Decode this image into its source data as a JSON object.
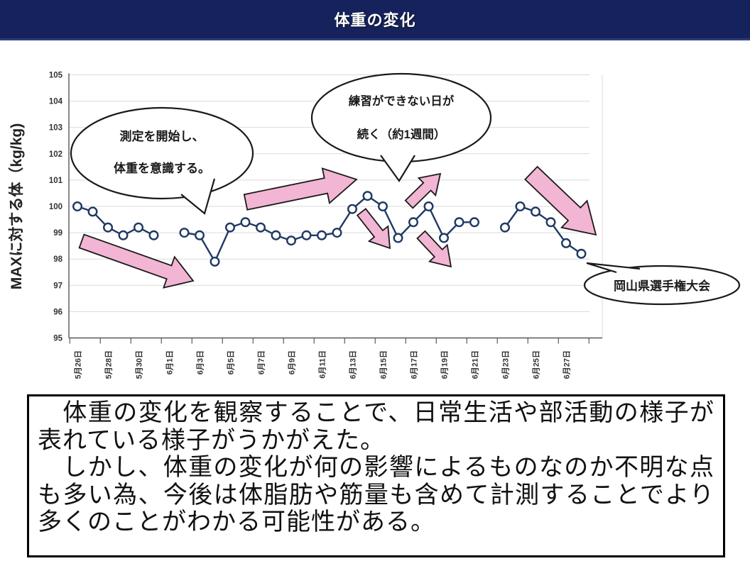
{
  "header": {
    "title": "体重の変化"
  },
  "colors": {
    "header_bg": "#16225B",
    "line": "#1F3864",
    "grid": "#D9D9D9",
    "axis": "#595959",
    "arrow_fill": "#F3B5D4",
    "arrow_stroke": "#1a1a1a"
  },
  "chart_data": {
    "type": "line",
    "title": "",
    "xlabel": "",
    "ylabel": "MAXに対する体（kg/kg)",
    "ylim": [
      95,
      105
    ],
    "yticks": [
      105,
      104,
      103,
      102,
      101,
      100,
      99,
      98,
      97,
      96,
      95
    ],
    "grid": true,
    "legend": "none",
    "marker": "open-circle",
    "x_tick_labels": [
      "5月26日",
      "5月28日",
      "5月30日",
      "6月1日",
      "6月3日",
      "6月5日",
      "6月7日",
      "6月9日",
      "6月11日",
      "6月13日",
      "6月15日",
      "6月17日",
      "6月19日",
      "6月21日",
      "6月23日",
      "6月25日",
      "6月27日"
    ],
    "x": [
      "5月26日",
      "5月27日",
      "5月28日",
      "5月29日",
      "5月30日",
      "5月31日",
      "6月1日",
      "6月2日",
      "6月3日",
      "6月4日",
      "6月5日",
      "6月6日",
      "6月7日",
      "6月8日",
      "6月9日",
      "6月10日",
      "6月11日",
      "6月12日",
      "6月13日",
      "6月14日",
      "6月15日",
      "6月16日",
      "6月17日",
      "6月18日",
      "6月19日",
      "6月20日",
      "6月21日",
      "6月22日",
      "6月23日",
      "6月24日",
      "6月25日",
      "6月26日",
      "6月27日",
      "6月28日"
    ],
    "values": [
      100.0,
      99.8,
      99.2,
      98.9,
      99.2,
      98.9,
      null,
      99.0,
      98.9,
      97.9,
      99.2,
      99.4,
      99.2,
      98.9,
      98.7,
      98.9,
      98.9,
      99.0,
      99.9,
      100.4,
      100.0,
      98.8,
      99.4,
      100.0,
      98.8,
      99.4,
      99.4,
      null,
      99.2,
      100.0,
      99.8,
      99.4,
      98.6,
      98.2
    ]
  },
  "annotations": {
    "bubbles": {
      "start": {
        "lines": [
          "測定を開始し、",
          "体重を意識する。"
        ]
      },
      "no_practice": {
        "lines": [
          "練習ができない日が",
          "続く（約1週間）"
        ]
      },
      "tournament": {
        "label": "岡山県選手権大会"
      }
    },
    "arrows": [
      {
        "name": "trend-arrow-down-1",
        "dir": "down-right",
        "from": [
          115,
          255
        ],
        "to": [
          272,
          311
        ],
        "shaft": 20,
        "head_w": 46,
        "head_l": 36
      },
      {
        "name": "trend-arrow-up-1",
        "dir": "up-right",
        "from": [
          346,
          200
        ],
        "to": [
          502,
          168
        ],
        "shaft": 22,
        "head_w": 50,
        "head_l": 44
      },
      {
        "name": "trend-arrow-down-2",
        "dir": "down-right",
        "from": [
          509,
          214
        ],
        "to": [
          549,
          265
        ],
        "shaft": 15,
        "head_w": 34,
        "head_l": 26
      },
      {
        "name": "trend-arrow-up-2",
        "dir": "up-right",
        "from": [
          576,
          203
        ],
        "to": [
          620,
          160
        ],
        "shaft": 15,
        "head_w": 34,
        "head_l": 26
      },
      {
        "name": "trend-arrow-down-3",
        "dir": "down-right",
        "from": [
          593,
          246
        ],
        "to": [
          635,
          291
        ],
        "shaft": 15,
        "head_w": 34,
        "head_l": 26
      },
      {
        "name": "trend-arrow-down-4",
        "dir": "down-right",
        "from": [
          748,
          159
        ],
        "to": [
          839,
          246
        ],
        "shaft": 25,
        "head_w": 52,
        "head_l": 42
      }
    ]
  },
  "summary_box": {
    "paragraphs": [
      "　体重の変化を観察することで、日常生活や部活動の様子が表れている様子がうかがえた。",
      "　しかし、体重の変化が何の影響によるものなのか不明な点も多い為、今後は体脂肪や筋量も含めて計測することでより多くのことがわかる可能性がある。"
    ]
  }
}
